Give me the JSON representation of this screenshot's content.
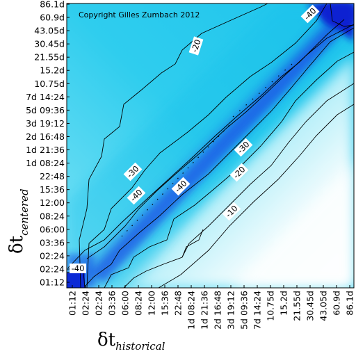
{
  "chart_data": {
    "type": "heatmap",
    "annotation": "Copyright Gilles Zumbach 2012",
    "xlabel_symbol": "δt",
    "xlabel_subscript": "historical",
    "ylabel_symbol": "δt",
    "ylabel_subscript": "centered",
    "x_ticks": [
      "01:12",
      "02:24",
      "02:24",
      "03:36",
      "06:00",
      "08:24",
      "12:00",
      "15:36",
      "22:48",
      "1d 08:24",
      "1d 21:36",
      "2d 16:48",
      "3d 19:12",
      "5d 09:36",
      "7d 14:24",
      "10.75d",
      "15.2d",
      "21.55d",
      "30.45d",
      "43.05d",
      "60.9d",
      "86.1d"
    ],
    "y_ticks": [
      "01:12",
      "02:24",
      "02:24",
      "03:36",
      "06:00",
      "08:24",
      "12:00",
      "15:36",
      "22:48",
      "1d 08:24",
      "1d 21:36",
      "2d 16:48",
      "3d 19:12",
      "5d 09:36",
      "7d 14:24",
      "10.75d",
      "15.2d",
      "21.55d",
      "30.45d",
      "43.05d",
      "60.9d",
      "86.1d"
    ],
    "contour_levels": [
      -10,
      -20,
      -30,
      -40
    ],
    "contour_labels": [
      "-40",
      "-20",
      "-40",
      "-30",
      "-40",
      "-40",
      "-30",
      "-20",
      "-10",
      "-40"
    ],
    "colormap": {
      "low": "#ffffff",
      "mid": "#33ccee",
      "high": "#0a1fd0"
    },
    "grid": false
  }
}
